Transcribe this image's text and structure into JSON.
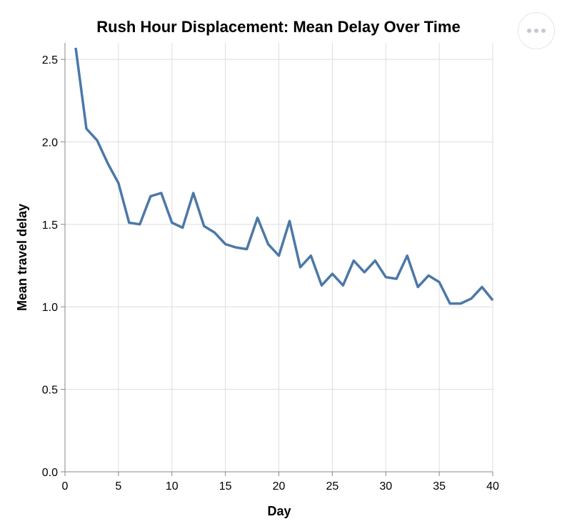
{
  "actions_menu": {
    "icon": "ellipsis-icon"
  },
  "chart_data": {
    "type": "line",
    "title": "Rush Hour Displacement: Mean Delay Over Time",
    "xlabel": "Day",
    "ylabel": "Mean travel delay",
    "xlim": [
      0,
      40
    ],
    "ylim": [
      0,
      2.6
    ],
    "x_ticks": [
      0,
      5,
      10,
      15,
      20,
      25,
      30,
      35,
      40
    ],
    "y_ticks": [
      0.0,
      0.5,
      1.0,
      1.5,
      2.0,
      2.5
    ],
    "x_tick_labels": [
      "0",
      "5",
      "10",
      "15",
      "20",
      "25",
      "30",
      "35",
      "40"
    ],
    "y_tick_labels": [
      "0.0",
      "0.5",
      "1.0",
      "1.5",
      "2.0",
      "2.5"
    ],
    "grid": true,
    "line_color": "#4c78a8",
    "series": [
      {
        "x": [
          1,
          2,
          3,
          4,
          5,
          6,
          7,
          8,
          9,
          10,
          11,
          12,
          13,
          14,
          15,
          16,
          17,
          18,
          19,
          20,
          21,
          22,
          23,
          24,
          25,
          26,
          27,
          28,
          29,
          30,
          31,
          32,
          33,
          34,
          35,
          36,
          37,
          38,
          39,
          40
        ],
        "values": [
          2.57,
          2.08,
          2.01,
          1.87,
          1.75,
          1.51,
          1.5,
          1.67,
          1.69,
          1.51,
          1.48,
          1.69,
          1.49,
          1.45,
          1.38,
          1.36,
          1.35,
          1.54,
          1.38,
          1.31,
          1.52,
          1.24,
          1.31,
          1.13,
          1.2,
          1.13,
          1.28,
          1.21,
          1.28,
          1.18,
          1.17,
          1.31,
          1.12,
          1.19,
          1.15,
          1.02,
          1.02,
          1.05,
          1.12,
          1.04
        ]
      }
    ]
  }
}
